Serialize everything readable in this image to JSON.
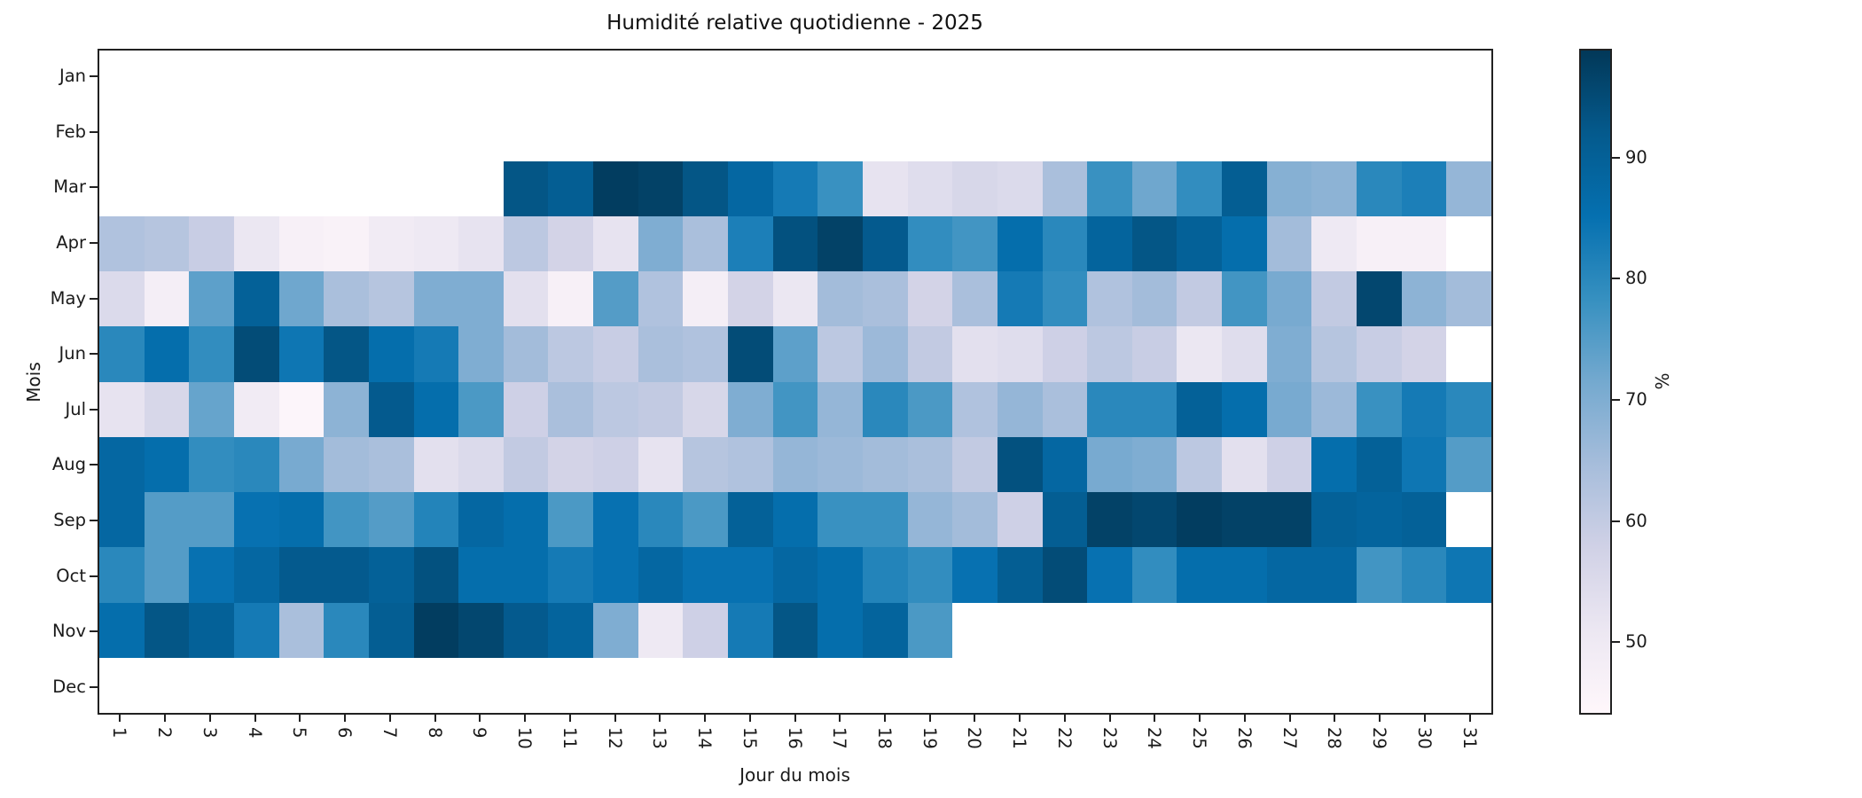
{
  "figure": {
    "title": "Humidité relative quotidienne - 2025",
    "x_axis_label": "Jour du mois",
    "y_axis_label": "Mois",
    "colorbar_label": "%"
  },
  "chart_data": {
    "type": "heatmap",
    "title": "Humidité relative quotidienne - 2025",
    "xlabel": "Jour du mois",
    "ylabel": "Mois",
    "unit": "%",
    "x_ticks": [
      "1",
      "2",
      "3",
      "4",
      "5",
      "6",
      "7",
      "8",
      "9",
      "10",
      "11",
      "12",
      "13",
      "14",
      "15",
      "16",
      "17",
      "18",
      "19",
      "20",
      "21",
      "22",
      "23",
      "24",
      "25",
      "26",
      "27",
      "28",
      "29",
      "30",
      "31"
    ],
    "y_ticks": [
      "Jan",
      "Feb",
      "Mar",
      "Apr",
      "May",
      "Jun",
      "Jul",
      "Aug",
      "Sep",
      "Oct",
      "Nov",
      "Dec"
    ],
    "colormap": "PuBu",
    "colormap_colors": [
      "#fff7fb",
      "#ece7f2",
      "#d0d1e6",
      "#a6bddb",
      "#74a9cf",
      "#3690c0",
      "#0570b0",
      "#045a8d",
      "#023858"
    ],
    "vmin": 44,
    "vmax": 99,
    "colorbar_ticks": [
      50,
      60,
      70,
      80,
      90
    ],
    "values": [
      [
        null,
        null,
        null,
        null,
        null,
        null,
        null,
        null,
        null,
        null,
        null,
        null,
        null,
        null,
        null,
        null,
        null,
        null,
        null,
        null,
        null,
        null,
        null,
        null,
        null,
        null,
        null,
        null,
        null,
        null,
        null
      ],
      [
        null,
        null,
        null,
        null,
        null,
        null,
        null,
        null,
        null,
        null,
        null,
        null,
        null,
        null,
        null,
        null,
        null,
        null,
        null,
        null,
        null,
        null,
        null,
        null,
        null,
        null,
        null,
        null,
        null,
        null,
        null
      ],
      [
        null,
        null,
        null,
        null,
        null,
        null,
        null,
        null,
        null,
        93,
        91,
        98,
        97,
        93,
        88,
        83,
        78,
        52,
        54,
        56,
        55,
        64,
        78,
        72,
        79,
        91,
        69,
        68,
        80,
        82,
        67
      ],
      [
        63,
        62,
        59,
        51,
        47,
        46,
        49,
        50,
        52,
        61,
        57,
        52,
        70,
        64,
        82,
        94,
        97,
        92,
        79,
        77,
        86,
        80,
        89,
        93,
        90,
        86,
        65,
        50,
        47,
        47,
        null
      ],
      [
        55,
        48,
        74,
        90,
        72,
        64,
        62,
        70,
        70,
        53,
        47,
        75,
        63,
        48,
        57,
        51,
        65,
        64,
        57,
        64,
        83,
        79,
        63,
        65,
        60,
        77,
        71,
        60,
        96,
        68,
        65
      ],
      [
        80,
        86,
        79,
        95,
        84,
        93,
        86,
        83,
        70,
        65,
        61,
        59,
        64,
        63,
        95,
        74,
        61,
        66,
        60,
        53,
        54,
        58,
        61,
        59,
        51,
        54,
        70,
        62,
        59,
        57,
        null
      ],
      [
        52,
        56,
        73,
        49,
        45,
        68,
        92,
        86,
        76,
        58,
        64,
        61,
        60,
        56,
        70,
        77,
        67,
        80,
        76,
        63,
        67,
        64,
        80,
        80,
        90,
        86,
        71,
        66,
        78,
        83,
        80
      ],
      [
        88,
        86,
        79,
        80,
        71,
        65,
        64,
        53,
        55,
        60,
        57,
        58,
        52,
        62,
        63,
        67,
        66,
        65,
        64,
        60,
        94,
        88,
        71,
        70,
        61,
        53,
        58,
        86,
        90,
        84,
        75
      ],
      [
        88,
        75,
        75,
        85,
        86,
        77,
        75,
        81,
        88,
        86,
        76,
        85,
        80,
        76,
        90,
        86,
        78,
        78,
        67,
        65,
        58,
        91,
        97,
        96,
        98,
        97,
        97,
        90,
        89,
        90,
        null
      ],
      [
        80,
        75,
        85,
        88,
        92,
        92,
        90,
        94,
        86,
        86,
        83,
        85,
        88,
        85,
        85,
        88,
        86,
        81,
        79,
        85,
        91,
        95,
        85,
        79,
        86,
        86,
        88,
        88,
        77,
        80,
        84
      ],
      [
        86,
        93,
        90,
        83,
        64,
        80,
        91,
        98,
        96,
        92,
        89,
        70,
        50,
        58,
        83,
        93,
        86,
        89,
        76,
        null,
        null,
        null,
        null,
        null,
        null,
        null,
        null,
        null,
        null,
        null,
        null
      ],
      [
        null,
        null,
        null,
        null,
        null,
        null,
        null,
        null,
        null,
        null,
        null,
        null,
        null,
        null,
        null,
        null,
        null,
        null,
        null,
        null,
        null,
        null,
        null,
        null,
        null,
        null,
        null,
        null,
        null,
        null,
        null
      ]
    ]
  }
}
